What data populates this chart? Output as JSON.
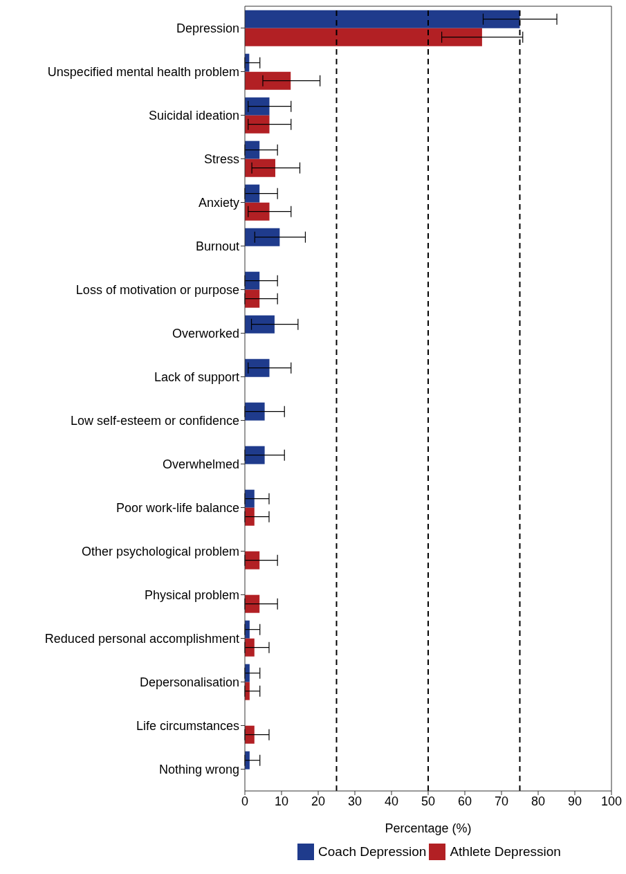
{
  "chart_data": {
    "type": "bar",
    "orientation": "horizontal",
    "xlabel": "Percentage (%)",
    "categories": [
      "Depression",
      "Unspecified mental health problem",
      "Suicidal ideation",
      "Stress",
      "Anxiety",
      "Burnout",
      "Loss of motivation or purpose",
      "Overworked",
      "Lack of support",
      "Low self-esteem or confidence",
      "Overwhelmed",
      "Poor work-life balance",
      "Other psychological problem",
      "Physical problem",
      "Reduced personal accomplishment",
      "Depersonalisation",
      "Life circumstances",
      "Nothing wrong"
    ],
    "series": [
      {
        "name": "Coach Depression",
        "color": "#1f3b8c",
        "values": [
          75,
          1.2,
          6.7,
          4.0,
          4.0,
          9.5,
          4.0,
          8.1,
          6.7,
          5.4,
          5.4,
          2.6,
          null,
          null,
          1.3,
          1.3,
          null,
          1.3
        ],
        "errors": [
          [
            65,
            85.1
          ],
          [
            0,
            4.1
          ],
          [
            0.9,
            12.6
          ],
          [
            0,
            8.9
          ],
          [
            0,
            8.9
          ],
          [
            2.7,
            16.5
          ],
          [
            0,
            8.9
          ],
          [
            1.8,
            14.5
          ],
          [
            0.9,
            12.6
          ],
          [
            0,
            10.8
          ],
          [
            0,
            10.8
          ],
          [
            0,
            6.6
          ],
          null,
          null,
          [
            0,
            4.1
          ],
          [
            0,
            4.1
          ],
          null,
          [
            0,
            4.1
          ]
        ]
      },
      {
        "name": "Athlete Depression",
        "color": "#b22024",
        "values": [
          64.7,
          12.5,
          6.7,
          8.3,
          6.7,
          null,
          4.0,
          null,
          null,
          null,
          null,
          2.6,
          4.0,
          4.0,
          2.6,
          1.3,
          2.6,
          null
        ],
        "errors": [
          [
            53.7,
            75.8
          ],
          [
            4.9,
            20.5
          ],
          [
            0.9,
            12.6
          ],
          [
            1.9,
            15.0
          ],
          [
            0.9,
            12.6
          ],
          null,
          [
            0,
            8.9
          ],
          null,
          null,
          null,
          null,
          [
            0,
            6.6
          ],
          [
            0,
            8.9
          ],
          [
            0,
            8.9
          ],
          [
            0,
            6.6
          ],
          [
            0,
            4.1
          ],
          [
            0,
            6.6
          ],
          null
        ]
      }
    ],
    "xlim": [
      0,
      100
    ],
    "xticks": [
      0,
      10,
      20,
      30,
      40,
      50,
      60,
      70,
      80,
      90,
      100
    ],
    "ref_lines": [
      {
        "axis": "x",
        "value": 25,
        "line_style": "dashed"
      },
      {
        "axis": "x",
        "value": 50,
        "line_style": "dashed"
      },
      {
        "axis": "x",
        "value": 75,
        "line_style": "dashed"
      }
    ],
    "legend": "bottom"
  }
}
